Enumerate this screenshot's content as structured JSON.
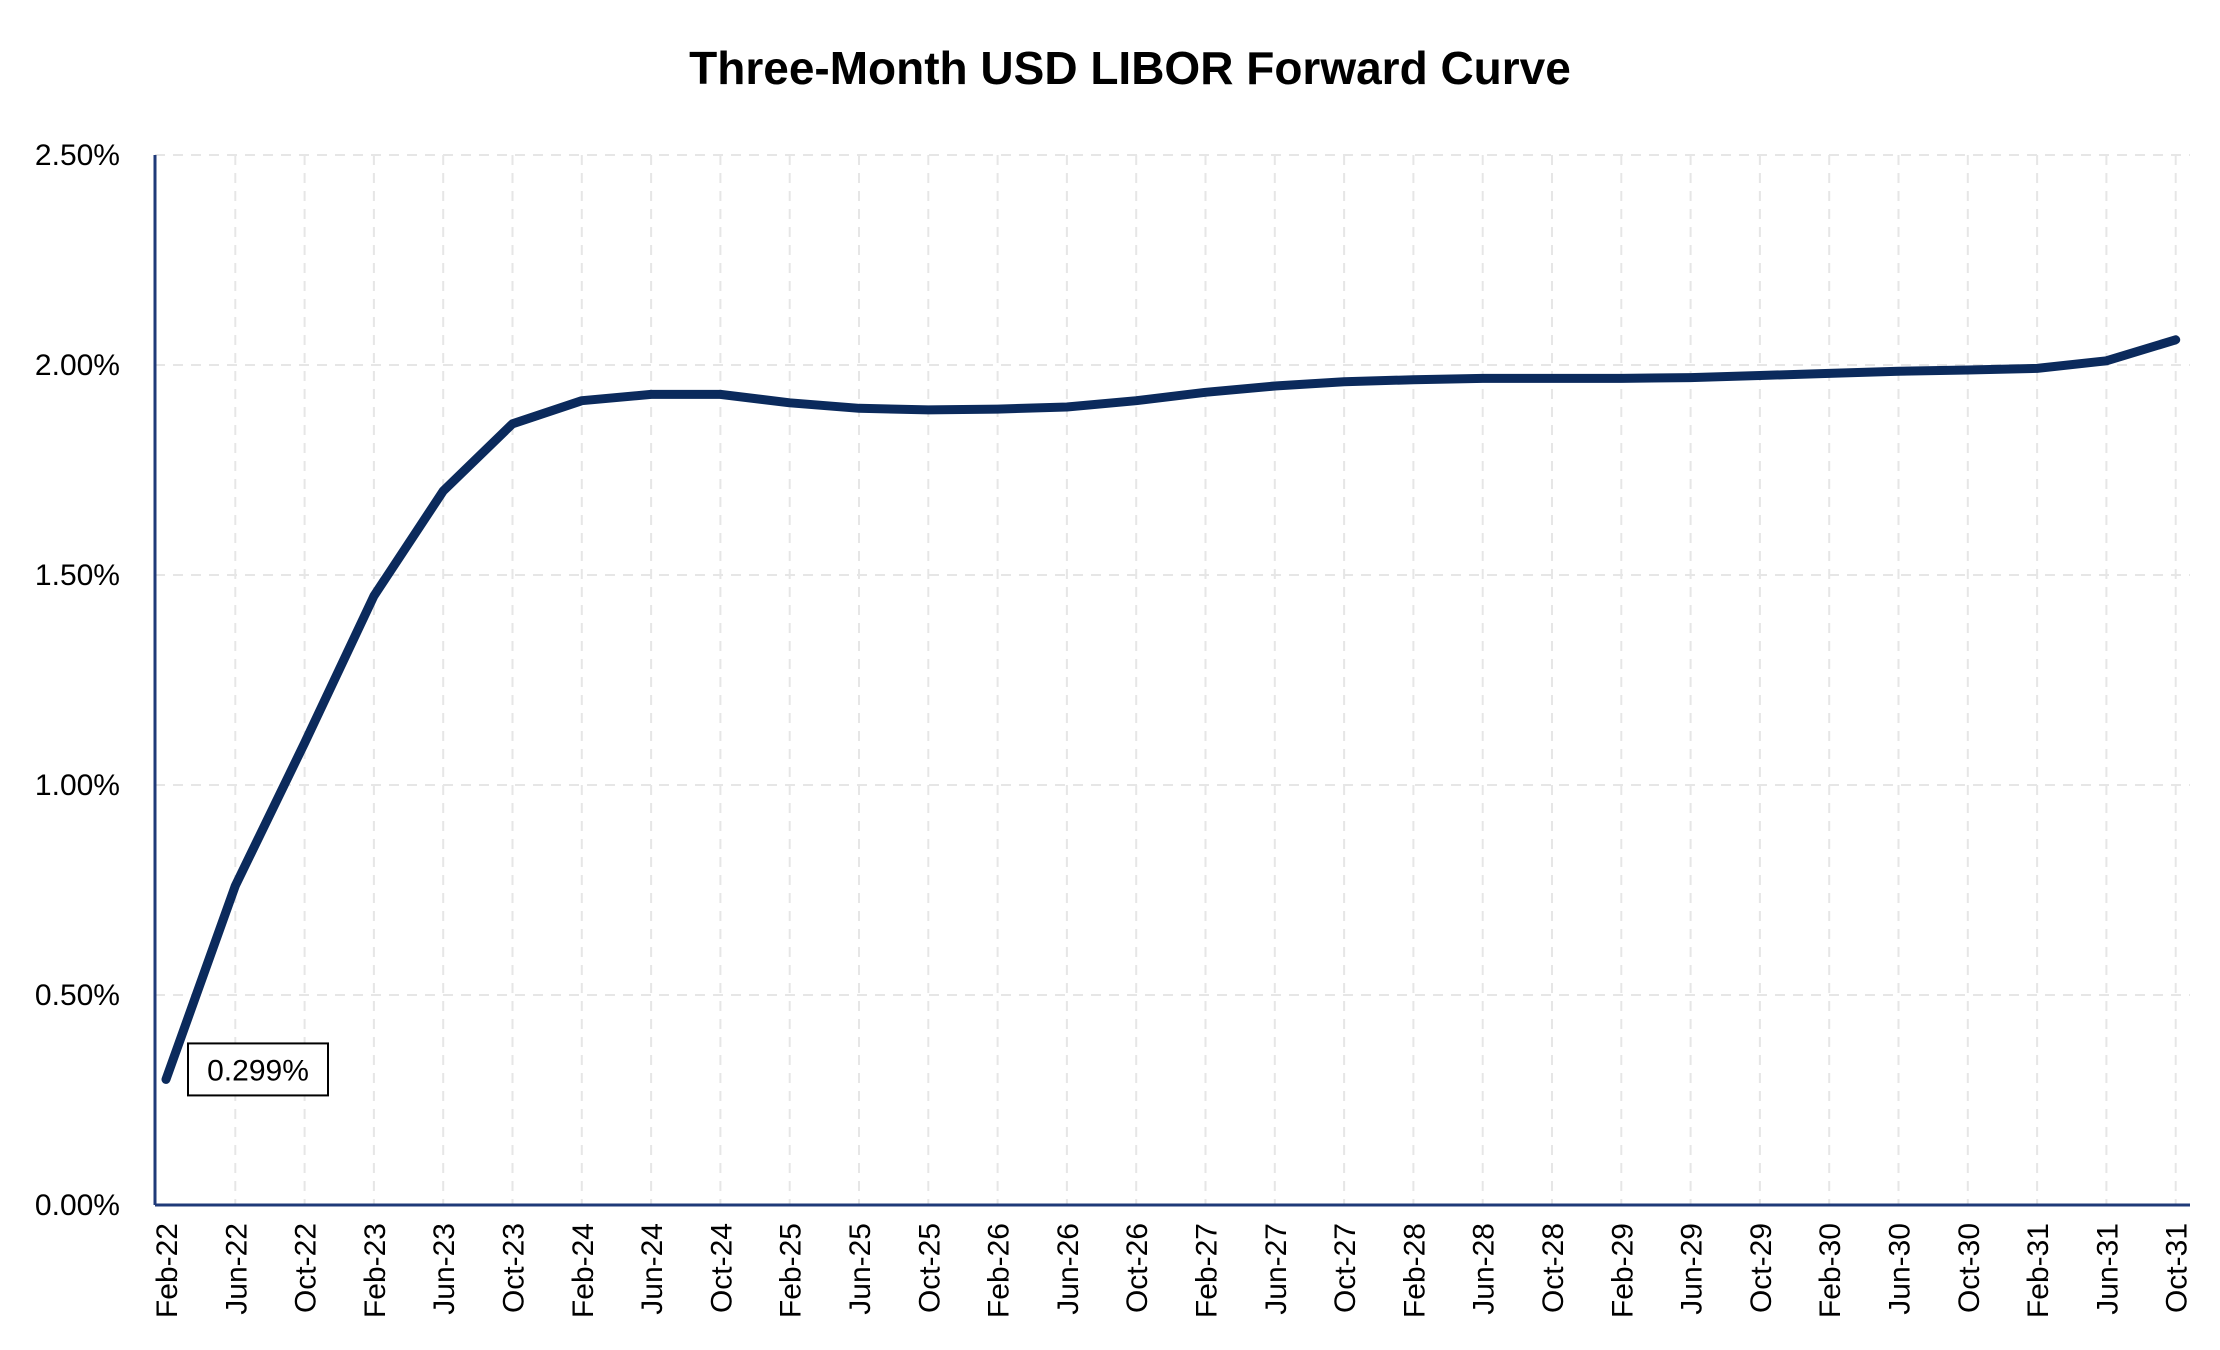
{
  "chart_data": {
    "type": "line",
    "title": "Three-Month USD LIBOR Forward Curve",
    "xlabel": "",
    "ylabel": "",
    "ylim": [
      0,
      2.5
    ],
    "y_ticks": [
      "0.00%",
      "0.50%",
      "1.00%",
      "1.50%",
      "2.00%",
      "2.50%"
    ],
    "y_tick_values": [
      0,
      0.5,
      1.0,
      1.5,
      2.0,
      2.5
    ],
    "x_ticks": [
      "Feb-22",
      "Jun-22",
      "Oct-22",
      "Feb-23",
      "Jun-23",
      "Oct-23",
      "Feb-24",
      "Jun-24",
      "Oct-24",
      "Feb-25",
      "Jun-25",
      "Oct-25",
      "Feb-26",
      "Jun-26",
      "Oct-26",
      "Feb-27",
      "Jun-27",
      "Oct-27",
      "Feb-28",
      "Jun-28",
      "Oct-28",
      "Feb-29",
      "Jun-29",
      "Oct-29",
      "Feb-30",
      "Jun-30",
      "Oct-30",
      "Feb-31",
      "Jun-31",
      "Oct-31"
    ],
    "grid": true,
    "legend": "none",
    "series": [
      {
        "color": "#0b2a5c",
        "x": [
          "Feb-22",
          "Jun-22",
          "Oct-22",
          "Feb-23",
          "Jun-23",
          "Oct-23",
          "Feb-24",
          "Jun-24",
          "Oct-24",
          "Feb-25",
          "Jun-25",
          "Oct-25",
          "Feb-26",
          "Jun-26",
          "Oct-26",
          "Feb-27",
          "Jun-27",
          "Oct-27",
          "Feb-28",
          "Jun-28",
          "Oct-28",
          "Feb-29",
          "Jun-29",
          "Oct-29",
          "Feb-30",
          "Jun-30",
          "Oct-30",
          "Feb-31",
          "Jun-31",
          "Oct-31"
        ],
        "values": [
          0.299,
          0.76,
          1.1,
          1.45,
          1.7,
          1.86,
          1.915,
          1.93,
          1.93,
          1.91,
          1.897,
          1.893,
          1.895,
          1.9,
          1.915,
          1.935,
          1.95,
          1.96,
          1.965,
          1.968,
          1.968,
          1.968,
          1.97,
          1.975,
          1.98,
          1.985,
          1.988,
          1.992,
          2.01,
          2.06
        ]
      }
    ],
    "annotations": [
      {
        "x": "Feb-22",
        "y": 0.299,
        "text": "0.299%"
      }
    ],
    "colors": {
      "line": "#0b2a5c",
      "axis": "#1f3a78",
      "grid": "#e6e6e6"
    }
  }
}
